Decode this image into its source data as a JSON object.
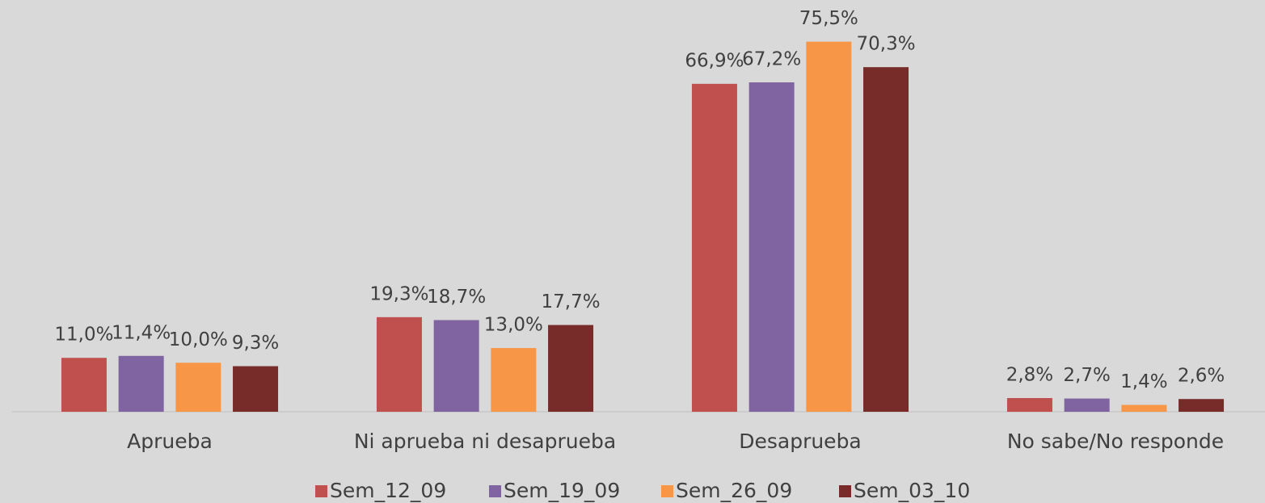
{
  "chart_data": {
    "type": "bar",
    "categories": [
      "Aprueba",
      "Ni aprueba ni desaprueba",
      "Desaprueba",
      "No sabe/No responde"
    ],
    "series": [
      {
        "name": "Sem_12_09",
        "color": "#c0504d",
        "values": [
          11.0,
          19.3,
          66.9,
          2.8
        ],
        "value_labels": [
          "11,0%",
          "19,3%",
          "66,9%",
          "2,8%"
        ]
      },
      {
        "name": "Sem_19_09",
        "color": "#8064a2",
        "values": [
          11.4,
          18.7,
          67.2,
          2.7
        ],
        "value_labels": [
          "11,4%",
          "18,7%",
          "67,2%",
          "2,7%"
        ]
      },
      {
        "name": "Sem_26_09",
        "color": "#f79646",
        "values": [
          10.0,
          13.0,
          75.5,
          1.4
        ],
        "value_labels": [
          "10,0%",
          "13,0%",
          "75,5%",
          "1,4%"
        ]
      },
      {
        "name": "Sem_03_10",
        "color": "#772c2a",
        "values": [
          9.3,
          17.7,
          70.3,
          2.6
        ],
        "value_labels": [
          "9,3%",
          "17,7%",
          "70,3%",
          "2,6%"
        ]
      }
    ],
    "ylim": [
      0,
      84
    ],
    "legend": "bottom"
  }
}
